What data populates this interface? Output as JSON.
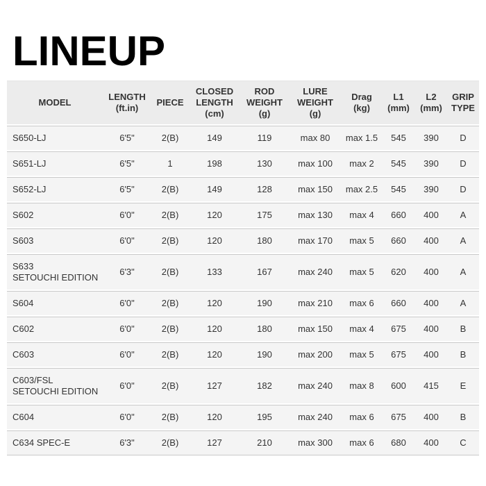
{
  "page": {
    "title": "LINEUP"
  },
  "table": {
    "columns": [
      {
        "key": "model",
        "label": "MODEL"
      },
      {
        "key": "length",
        "label": "LENGTH (ft.in)"
      },
      {
        "key": "piece",
        "label": "PIECE"
      },
      {
        "key": "closed_length",
        "label": "CLOSED LENGTH (cm)"
      },
      {
        "key": "rod_weight",
        "label": "ROD WEIGHT (g)"
      },
      {
        "key": "lure_weight",
        "label": "LURE WEIGHT (g)"
      },
      {
        "key": "drag",
        "label": "Drag (kg)"
      },
      {
        "key": "l1",
        "label": "L1 (mm)"
      },
      {
        "key": "l2",
        "label": "L2 (mm)"
      },
      {
        "key": "grip_type",
        "label": "GRIP TYPE"
      }
    ],
    "rows": [
      {
        "model": "S650-LJ",
        "length": "6'5\"",
        "piece": "2(B)",
        "closed_length": "149",
        "rod_weight": "119",
        "lure_weight": "max 80",
        "drag": "max 1.5",
        "l1": "545",
        "l2": "390",
        "grip_type": "D"
      },
      {
        "model": "S651-LJ",
        "length": "6'5\"",
        "piece": "1",
        "closed_length": "198",
        "rod_weight": "130",
        "lure_weight": "max 100",
        "drag": "max 2",
        "l1": "545",
        "l2": "390",
        "grip_type": "D"
      },
      {
        "model": "S652-LJ",
        "length": "6'5\"",
        "piece": "2(B)",
        "closed_length": "149",
        "rod_weight": "128",
        "lure_weight": "max 150",
        "drag": "max 2.5",
        "l1": "545",
        "l2": "390",
        "grip_type": "D"
      },
      {
        "model": "S602",
        "length": "6'0\"",
        "piece": "2(B)",
        "closed_length": "120",
        "rod_weight": "175",
        "lure_weight": "max 130",
        "drag": "max 4",
        "l1": "660",
        "l2": "400",
        "grip_type": "A"
      },
      {
        "model": "S603",
        "length": "6'0\"",
        "piece": "2(B)",
        "closed_length": "120",
        "rod_weight": "180",
        "lure_weight": "max 170",
        "drag": "max 5",
        "l1": "660",
        "l2": "400",
        "grip_type": "A"
      },
      {
        "model": "S633\nSETOUCHI EDITION",
        "length": "6'3\"",
        "piece": "2(B)",
        "closed_length": "133",
        "rod_weight": "167",
        "lure_weight": "max 240",
        "drag": "max 5",
        "l1": "620",
        "l2": "400",
        "grip_type": "A"
      },
      {
        "model": "S604",
        "length": "6'0\"",
        "piece": "2(B)",
        "closed_length": "120",
        "rod_weight": "190",
        "lure_weight": "max 210",
        "drag": "max 6",
        "l1": "660",
        "l2": "400",
        "grip_type": "A"
      },
      {
        "model": "C602",
        "length": "6'0\"",
        "piece": "2(B)",
        "closed_length": "120",
        "rod_weight": "180",
        "lure_weight": "max 150",
        "drag": "max 4",
        "l1": "675",
        "l2": "400",
        "grip_type": "B"
      },
      {
        "model": "C603",
        "length": "6'0\"",
        "piece": "2(B)",
        "closed_length": "120",
        "rod_weight": "190",
        "lure_weight": "max 200",
        "drag": "max 5",
        "l1": "675",
        "l2": "400",
        "grip_type": "B"
      },
      {
        "model": "C603/FSL\nSETOUCHI EDITION",
        "length": "6'0\"",
        "piece": "2(B)",
        "closed_length": "127",
        "rod_weight": "182",
        "lure_weight": "max 240",
        "drag": "max 8",
        "l1": "600",
        "l2": "415",
        "grip_type": "E"
      },
      {
        "model": "C604",
        "length": "6'0\"",
        "piece": "2(B)",
        "closed_length": "120",
        "rod_weight": "195",
        "lure_weight": "max 240",
        "drag": "max 6",
        "l1": "675",
        "l2": "400",
        "grip_type": "B"
      },
      {
        "model": "C634 SPEC-E",
        "length": "6'3\"",
        "piece": "2(B)",
        "closed_length": "127",
        "rod_weight": "210",
        "lure_weight": "max 300",
        "drag": "max 6",
        "l1": "680",
        "l2": "400",
        "grip_type": "C"
      }
    ]
  }
}
